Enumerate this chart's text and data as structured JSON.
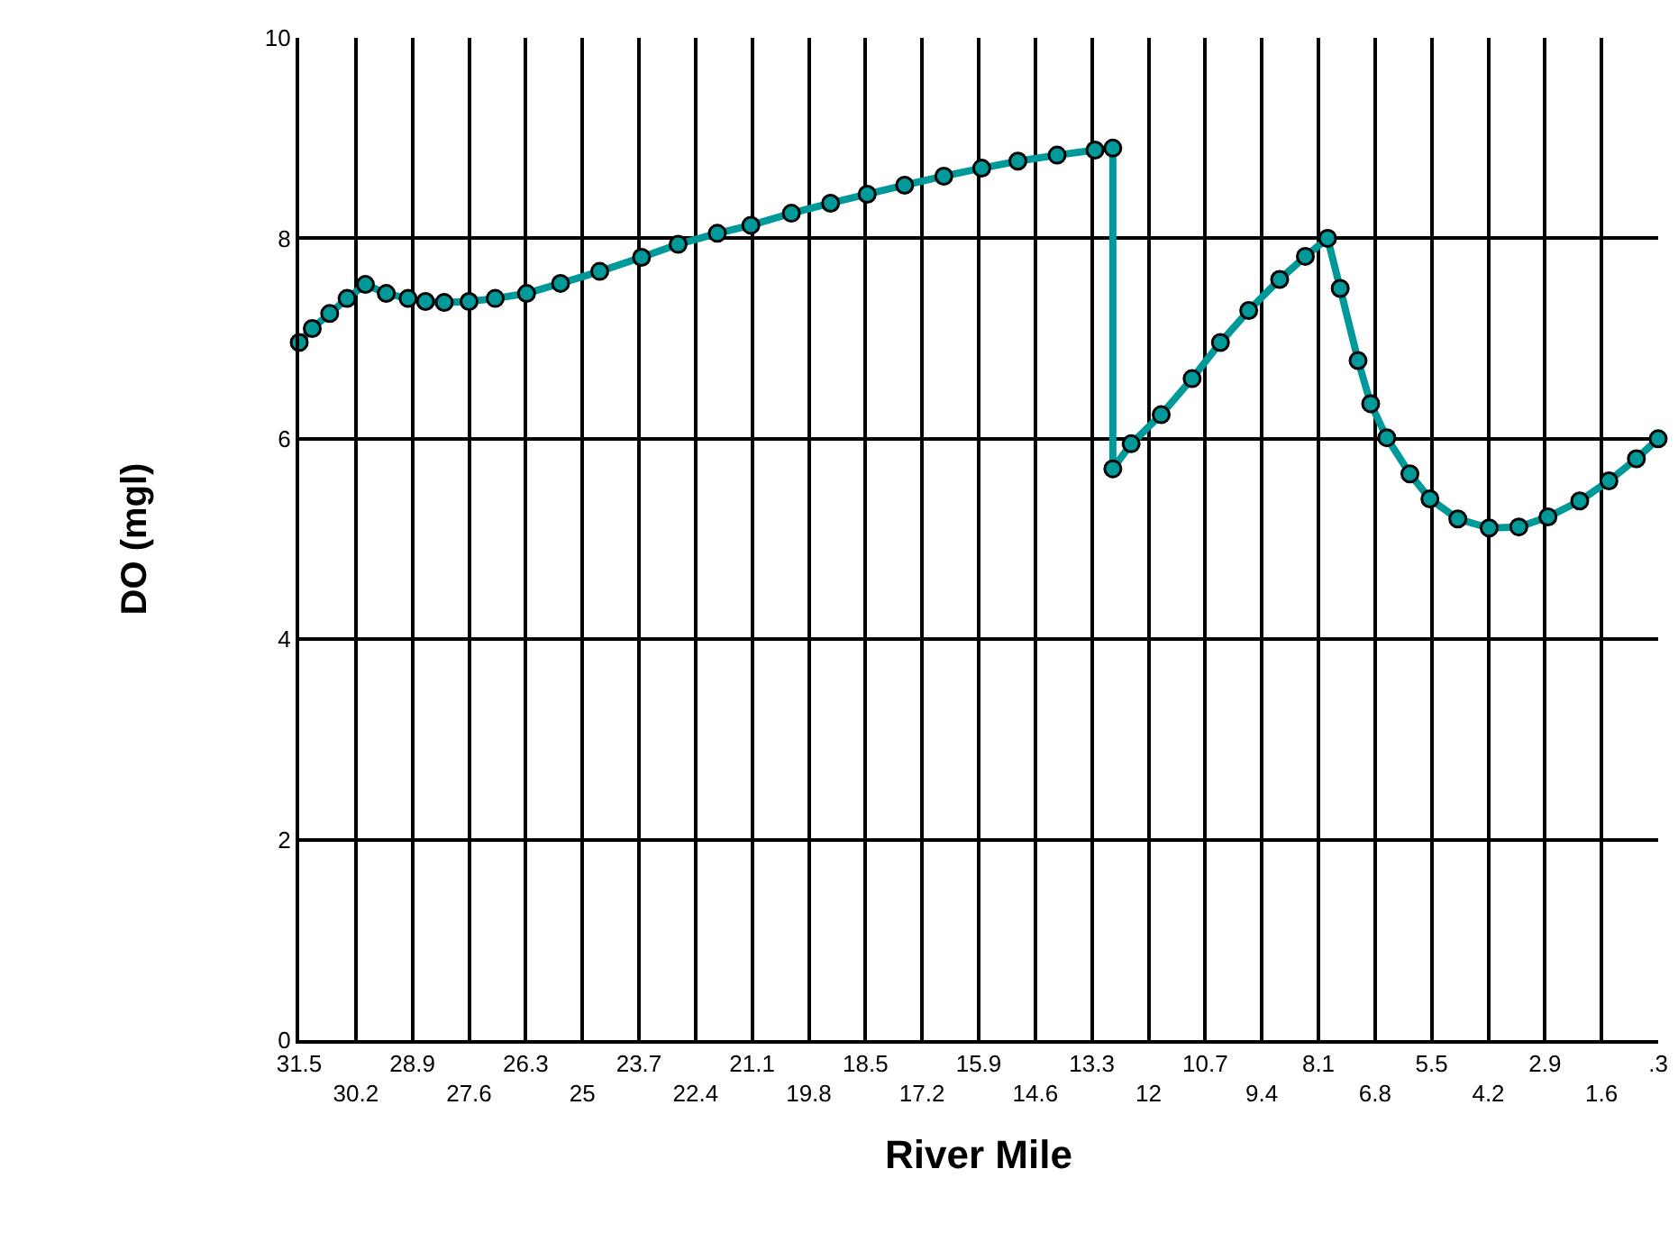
{
  "chart_data": {
    "type": "line",
    "xlabel": "River Mile",
    "ylabel": "DO (mgl)",
    "series": [
      {
        "color": "#009999",
        "x": [
          31.5,
          31.2,
          30.8,
          30.4,
          29.98,
          29.5,
          29.0,
          28.6,
          28.17,
          27.6,
          27.0,
          26.28,
          25.5,
          24.6,
          23.64,
          22.8,
          21.9,
          21.13,
          20.2,
          19.3,
          18.46,
          17.6,
          16.7,
          15.83,
          15.0,
          14.1,
          13.23,
          12.82,
          12.82,
          12.4,
          11.71,
          11.0,
          10.35,
          9.7,
          8.99,
          8.4,
          7.89,
          7.6,
          7.19,
          6.9,
          6.53,
          6.0,
          5.54,
          4.9,
          4.18,
          3.5,
          2.83,
          2.1,
          1.43,
          0.8,
          0.3
        ],
        "values": [
          6.96,
          7.1,
          7.25,
          7.4,
          7.54,
          7.45,
          7.4,
          7.37,
          7.36,
          7.37,
          7.4,
          7.45,
          7.55,
          7.67,
          7.81,
          7.94,
          8.05,
          8.13,
          8.25,
          8.35,
          8.44,
          8.53,
          8.62,
          8.7,
          8.77,
          8.83,
          8.88,
          8.9,
          5.7,
          5.95,
          6.24,
          6.6,
          6.96,
          7.28,
          7.59,
          7.82,
          8.0,
          7.5,
          6.78,
          6.35,
          6.01,
          5.65,
          5.4,
          5.2,
          5.11,
          5.12,
          5.22,
          5.38,
          5.58,
          5.8,
          6.0
        ]
      }
    ],
    "xlim": [
      31.5,
      0.3
    ],
    "xticks": [
      31.5,
      28.9,
      26.3,
      23.7,
      21.1,
      18.5,
      15.9,
      13.3,
      10.7,
      8.1,
      5.5,
      2.9,
      {
        "value": 0.3,
        "label": ".3"
      }
    ],
    "x2lim": [
      31.5,
      0.3
    ],
    "x2ticks": [
      30.2,
      27.6,
      25,
      22.4,
      19.8,
      17.2,
      14.6,
      12,
      9.4,
      6.8,
      4.2,
      1.6
    ],
    "ylim": [
      0,
      10
    ],
    "yticks": [
      0,
      2,
      4,
      6,
      8,
      10
    ],
    "grid": true,
    "marker": "circle",
    "line_style": "solid"
  }
}
